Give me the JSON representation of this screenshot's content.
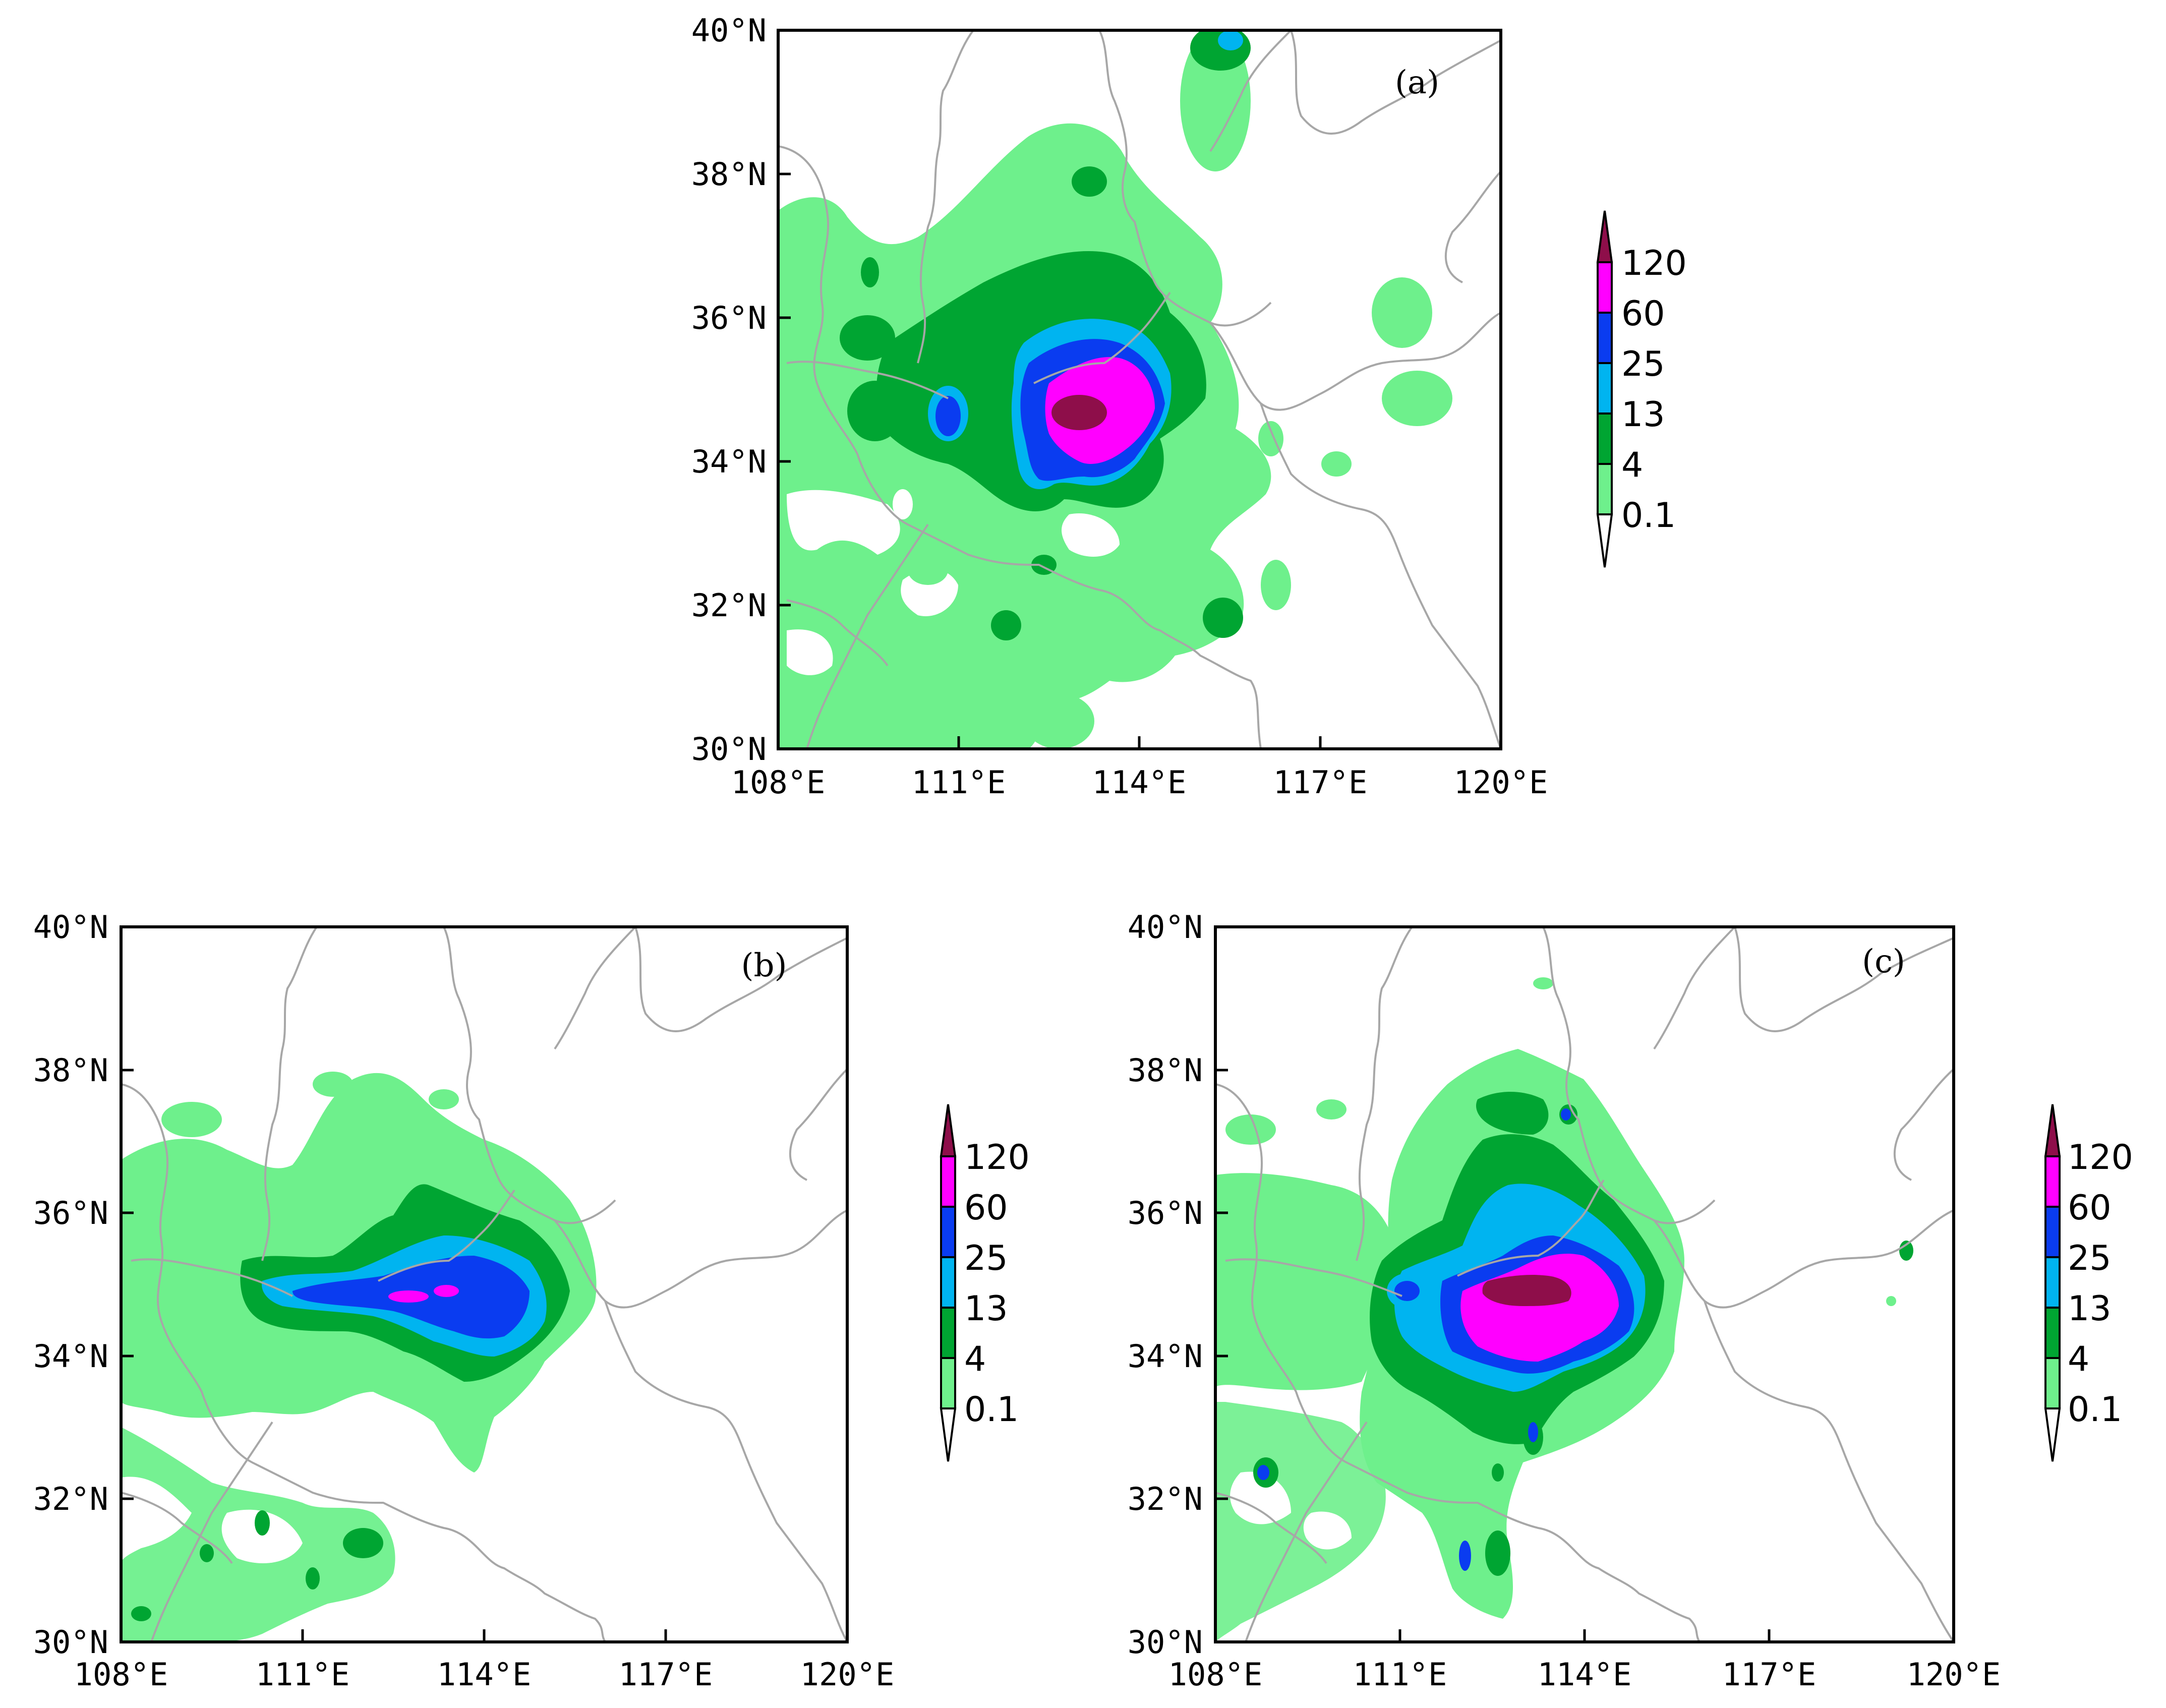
{
  "colorbar": {
    "levels": [
      "120",
      "60",
      "25",
      "13",
      "4",
      "0.1"
    ],
    "colors": [
      "#8e0e4a",
      "#ff00ff",
      "#0a3cf0",
      "#00b4f0",
      "#00a532",
      "#6ef08c"
    ]
  },
  "axes": {
    "x_ticks": [
      "108°E",
      "111°E",
      "114°E",
      "117°E",
      "120°E"
    ],
    "y_ticks": [
      "40°N",
      "38°N",
      "36°N",
      "34°N",
      "32°N",
      "30°N"
    ],
    "lon_range": [
      108,
      120
    ],
    "lat_range": [
      30,
      40
    ]
  },
  "panels": [
    {
      "id": "a",
      "label": "(a)"
    },
    {
      "id": "b",
      "label": "(b)"
    },
    {
      "id": "c",
      "label": "(c)"
    }
  ]
}
